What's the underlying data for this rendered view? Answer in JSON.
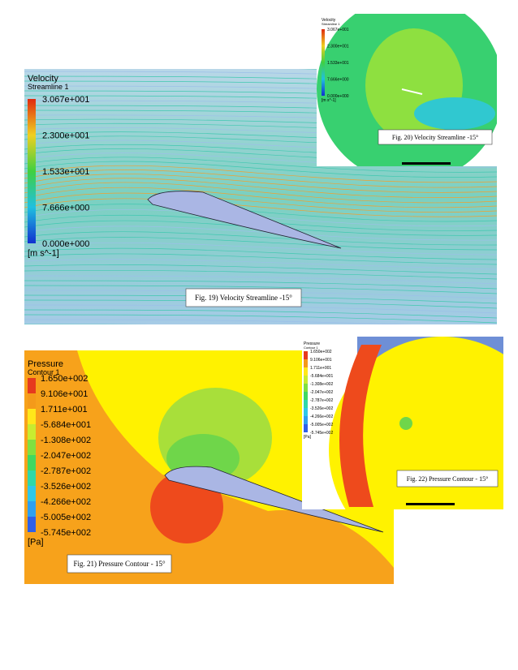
{
  "figures": [
    {
      "legend_title": "Velocity",
      "legend_subtitle": "Streamline 1",
      "legend_labels": [
        "3.067e+001",
        "2.300e+001",
        "1.533e+001",
        "7.666e+000",
        "0.000e+000"
      ],
      "unit": "[m s^-1]",
      "caption": "Fig. 19) Velocity Streamline -15°"
    },
    {
      "legend_title": "Velocity",
      "legend_subtitle": "Streamline 1",
      "legend_labels": [
        "3.067e+001",
        "2.300e+001",
        "1.533e+001",
        "7.666e+000",
        "0.000e+000"
      ],
      "unit": "[m s^-1]",
      "caption": "Fig. 20) Velocity Streamline -15°"
    },
    {
      "legend_title": "Pressure",
      "legend_subtitle": "Contour 1",
      "legend_labels": [
        "1.650e+002",
        "9.106e+001",
        "1.711e+001",
        "-5.684e+001",
        "-1.308e+002",
        "-2.047e+002",
        "-2.787e+002",
        "-3.526e+002",
        "-4.266e+002",
        "-5.005e+002",
        "-5.745e+002"
      ],
      "unit": "[Pa]",
      "caption": "Fig. 21) Pressure Contour - 15°"
    },
    {
      "legend_title": "Pressure",
      "legend_subtitle": "Contour 1",
      "legend_labels": [
        "1.650e+002",
        "9.106e+001",
        "1.711e+001",
        "-5.684e+001",
        "-1.308e+002",
        "-2.047e+002",
        "-2.787e+002",
        "-3.526e+002",
        "-4.266e+002",
        "-5.005e+002",
        "-5.745e+002"
      ],
      "unit": "[Pa]",
      "caption": "Fig. 22) Pressure Contour - 15°"
    }
  ]
}
